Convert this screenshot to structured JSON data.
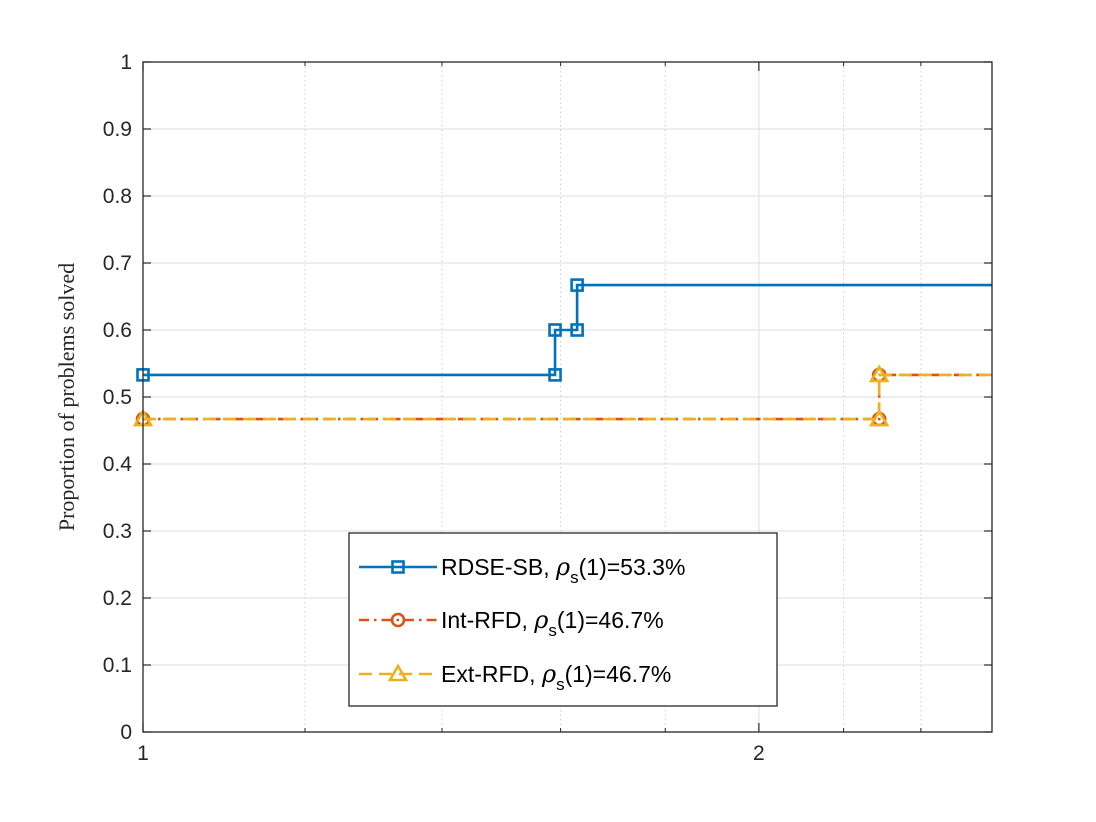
{
  "chart_data": {
    "type": "line",
    "style": "step",
    "title": "",
    "xlabel": "",
    "ylabel": "Proportion of problems solved",
    "x_scale": "log2",
    "xlim": [
      1,
      2.6
    ],
    "ylim": [
      0,
      1
    ],
    "xticks": [
      1,
      2
    ],
    "xtick_labels": [
      "1",
      "2"
    ],
    "yticks": [
      0,
      0.1,
      0.2,
      0.3,
      0.4,
      0.5,
      0.6,
      0.7,
      0.8,
      0.9,
      1
    ],
    "ytick_labels": [
      "0",
      "0.1",
      "0.2",
      "0.3",
      "0.4",
      "0.5",
      "0.6",
      "0.7",
      "0.8",
      "0.9",
      "1"
    ],
    "grid": true,
    "minor_grid_x": [
      1.2,
      1.4,
      1.6,
      1.8,
      2.2,
      2.4
    ],
    "legend_position": "lower-center",
    "series": [
      {
        "name": "RDSE-SB",
        "legend_prefix": "RDSE-SB, ",
        "legend_suffix": "(1)=53.3%",
        "color": "#0072BD",
        "line_style": "solid",
        "marker": "square",
        "x": [
          1,
          1.59,
          1.59,
          1.63,
          1.63,
          2.6
        ],
        "y": [
          0.533,
          0.533,
          0.6,
          0.6,
          0.667,
          0.667
        ]
      },
      {
        "name": "Int-RFD",
        "legend_prefix": "Int-RFD, ",
        "legend_suffix": "(1)=46.7%",
        "color": "#D95319",
        "line_style": "dashdot",
        "marker": "circle",
        "x": [
          1,
          2.29,
          2.29,
          2.6
        ],
        "y": [
          0.467,
          0.467,
          0.533,
          0.533
        ]
      },
      {
        "name": "Ext-RFD",
        "legend_prefix": "Ext-RFD, ",
        "legend_suffix": "(1)=46.7%",
        "color": "#EDB120",
        "line_style": "dashed",
        "marker": "triangle",
        "x": [
          1,
          2.29,
          2.29,
          2.6
        ],
        "y": [
          0.467,
          0.467,
          0.533,
          0.533
        ]
      }
    ]
  },
  "legend": {
    "rho_symbol": "ρ",
    "rho_subscript": "s"
  }
}
